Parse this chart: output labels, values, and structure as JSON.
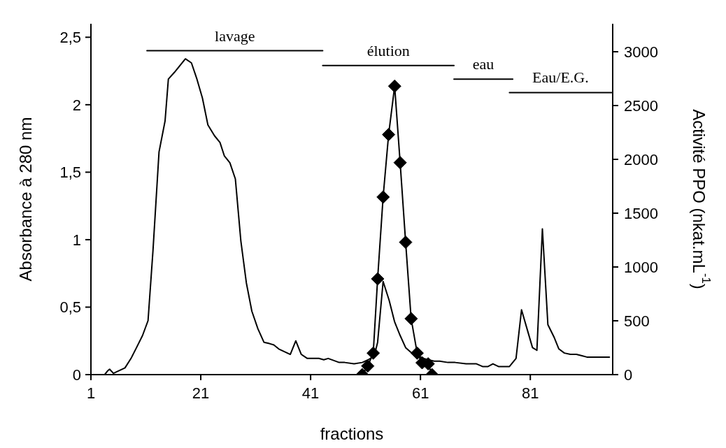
{
  "chart_data": {
    "type": "line",
    "xlabel": "fractions",
    "ylabel": "Absorbance à 280 nm",
    "y2label": "Activité PPO (nkat.mL$^{-1}$)",
    "xlim": [
      1,
      96
    ],
    "xticks": [
      1,
      21,
      41,
      61,
      81
    ],
    "ylim": [
      0,
      2.6
    ],
    "yticks": [
      0,
      {
        "value": 0.5,
        "label": "0,5"
      },
      1,
      {
        "value": 1.5,
        "label": "1,5"
      },
      2,
      {
        "value": 2.5,
        "label": "2,5"
      }
    ],
    "y2lim": [
      0,
      3260
    ],
    "y2ticks": [
      0,
      500,
      1000,
      1500,
      2000,
      2500,
      3000
    ],
    "grid": false,
    "legend": false,
    "series": [
      {
        "color": "#000000",
        "marker": "none",
        "x": [
          3.5,
          4.1,
          4.4,
          5.1,
          7.2,
          8.3,
          9.3,
          10.4,
          11.4,
          12.3,
          13.4,
          14.5,
          15.1,
          16.2,
          18.2,
          19.3,
          20.3,
          21.3,
          22.3,
          23.5,
          24.5,
          25.3,
          26.3,
          27.3,
          28.3,
          29.3,
          30.3,
          31.4,
          32.5,
          33.5,
          34.3,
          35.2,
          37.3,
          38.3,
          39.3,
          40.4,
          42.5,
          43.4,
          44.2,
          46.2,
          47.2,
          48.9,
          50.4,
          51.5,
          52.6,
          53.2,
          54.2,
          55.3,
          56.3,
          57.3,
          58.3,
          59.4,
          60.5,
          61.6,
          62.4,
          63.5,
          64.5,
          66.0,
          67.3,
          69.3,
          71.2,
          72.3,
          73.3,
          74.2,
          75.2,
          77.2,
          78.4,
          79.4,
          80.4,
          81.4,
          82.2,
          83.2,
          84.2,
          85.3,
          86.2,
          87.2,
          88.3,
          89.4,
          90.4,
          91.3,
          95.4
        ],
        "values": [
          0,
          0.03,
          0.04,
          0.01,
          0.05,
          0.12,
          0.2,
          0.29,
          0.4,
          0.92,
          1.65,
          1.88,
          2.19,
          2.24,
          2.34,
          2.31,
          2.19,
          2.05,
          1.85,
          1.77,
          1.72,
          1.62,
          1.57,
          1.45,
          0.99,
          0.68,
          0.47,
          0.34,
          0.24,
          0.23,
          0.22,
          0.19,
          0.15,
          0.25,
          0.15,
          0.12,
          0.12,
          0.11,
          0.12,
          0.09,
          0.09,
          0.08,
          0.09,
          0.11,
          0.14,
          0.24,
          0.69,
          0.55,
          0.39,
          0.29,
          0.2,
          0.16,
          0.14,
          0.12,
          0.11,
          0.1,
          0.1,
          0.09,
          0.09,
          0.08,
          0.08,
          0.06,
          0.06,
          0.08,
          0.06,
          0.06,
          0.12,
          0.48,
          0.34,
          0.2,
          0.18,
          1.08,
          0.37,
          0.28,
          0.19,
          0.16,
          0.15,
          0.15,
          0.14,
          0.13,
          0.13
        ]
      },
      {
        "color": "#000000",
        "marker": "diamond",
        "axis": "y2",
        "x": [
          50.4,
          51.4,
          52.4,
          53.2,
          54.2,
          55.2,
          56.3,
          57.3,
          58.3,
          59.3,
          60.4,
          61.3,
          62.4,
          63.1
        ],
        "values": [
          0,
          80,
          200,
          890,
          1650,
          2230,
          2680,
          1970,
          1230,
          520,
          200,
          110,
          100,
          0
        ]
      },
      {
        "name": "lavage",
        "color": "#000000",
        "marker": "none",
        "x": [
          11.2,
          43.2
        ],
        "values": [
          2.4,
          2.4
        ]
      },
      {
        "name": "élution",
        "color": "#000000",
        "marker": "none",
        "x": [
          43.2,
          67.1
        ],
        "values": [
          2.29,
          2.29
        ]
      },
      {
        "name": "eau",
        "color": "#000000",
        "marker": "none",
        "x": [
          67.1,
          77.8
        ],
        "values": [
          2.19,
          2.19
        ]
      },
      {
        "name": "Eau/E.G.",
        "color": "#000000",
        "marker": "none",
        "x": [
          77.2,
          95.8
        ],
        "values": [
          2.09,
          2.09
        ]
      }
    ]
  }
}
